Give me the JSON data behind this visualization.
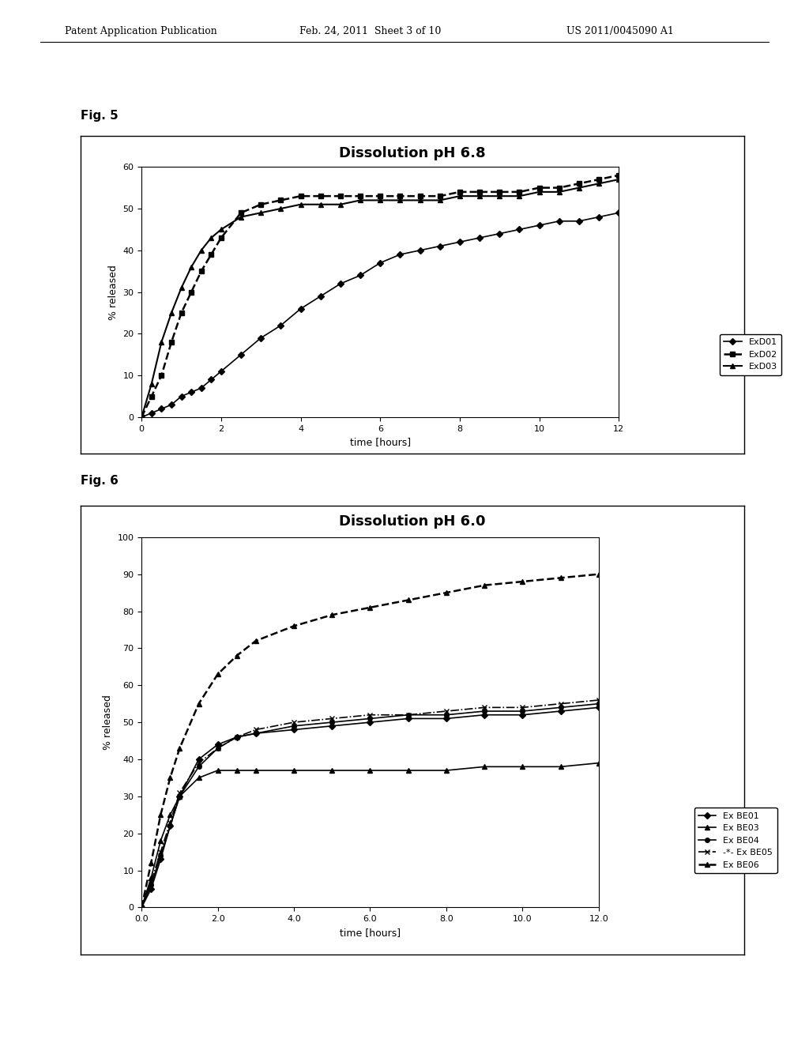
{
  "fig5": {
    "title": "Dissolution pH 6.8",
    "xlabel": "time [hours]",
    "ylabel": "% released",
    "xlim": [
      0,
      12
    ],
    "ylim": [
      0,
      60
    ],
    "yticks": [
      0,
      10,
      20,
      30,
      40,
      50,
      60
    ],
    "xticks": [
      0,
      2,
      4,
      6,
      8,
      10,
      12
    ],
    "series": {
      "ExD01": {
        "x": [
          0,
          0.25,
          0.5,
          0.75,
          1.0,
          1.25,
          1.5,
          1.75,
          2.0,
          2.5,
          3.0,
          3.5,
          4.0,
          4.5,
          5.0,
          5.5,
          6.0,
          6.5,
          7.0,
          7.5,
          8.0,
          8.5,
          9.0,
          9.5,
          10.0,
          10.5,
          11.0,
          11.5,
          12.0
        ],
        "y": [
          0,
          1,
          2,
          3,
          5,
          6,
          7,
          9,
          11,
          15,
          19,
          22,
          26,
          29,
          32,
          34,
          37,
          39,
          40,
          41,
          42,
          43,
          44,
          45,
          46,
          47,
          47,
          48,
          49
        ],
        "marker": "D",
        "linestyle": "-",
        "color": "#000000",
        "markersize": 4,
        "linewidth": 1.2,
        "label": "ExD01"
      },
      "ExD02": {
        "x": [
          0,
          0.25,
          0.5,
          0.75,
          1.0,
          1.25,
          1.5,
          1.75,
          2.0,
          2.5,
          3.0,
          3.5,
          4.0,
          4.5,
          5.0,
          5.5,
          6.0,
          6.5,
          7.0,
          7.5,
          8.0,
          8.5,
          9.0,
          9.5,
          10.0,
          10.5,
          11.0,
          11.5,
          12.0
        ],
        "y": [
          0,
          5,
          10,
          18,
          25,
          30,
          35,
          39,
          43,
          49,
          51,
          52,
          53,
          53,
          53,
          53,
          53,
          53,
          53,
          53,
          54,
          54,
          54,
          54,
          55,
          55,
          56,
          57,
          58
        ],
        "marker": "s",
        "linestyle": "--",
        "color": "#000000",
        "markersize": 5,
        "linewidth": 1.8,
        "label": "ExD02"
      },
      "ExD03": {
        "x": [
          0,
          0.25,
          0.5,
          0.75,
          1.0,
          1.25,
          1.5,
          1.75,
          2.0,
          2.5,
          3.0,
          3.5,
          4.0,
          4.5,
          5.0,
          5.5,
          6.0,
          6.5,
          7.0,
          7.5,
          8.0,
          8.5,
          9.0,
          9.5,
          10.0,
          10.5,
          11.0,
          11.5,
          12.0
        ],
        "y": [
          0,
          8,
          18,
          25,
          31,
          36,
          40,
          43,
          45,
          48,
          49,
          50,
          51,
          51,
          51,
          52,
          52,
          52,
          52,
          52,
          53,
          53,
          53,
          53,
          54,
          54,
          55,
          56,
          57
        ],
        "marker": "^",
        "linestyle": "-",
        "color": "#000000",
        "markersize": 5,
        "linewidth": 1.5,
        "label": "ExD03"
      }
    }
  },
  "fig6": {
    "title": "Dissolution pH 6.0",
    "xlabel": "time [hours]",
    "ylabel": "% released",
    "xlim": [
      0.0,
      12.0
    ],
    "ylim": [
      0,
      100
    ],
    "yticks": [
      0,
      10,
      20,
      30,
      40,
      50,
      60,
      70,
      80,
      90,
      100
    ],
    "xticks": [
      0.0,
      2.0,
      4.0,
      6.0,
      8.0,
      10.0,
      12.0
    ],
    "series": {
      "ExBE01": {
        "x": [
          0,
          0.25,
          0.5,
          0.75,
          1.0,
          1.5,
          2.0,
          2.5,
          3.0,
          4.0,
          5.0,
          6.0,
          7.0,
          8.0,
          9.0,
          10.0,
          11.0,
          12.0
        ],
        "y": [
          0,
          5,
          13,
          22,
          30,
          40,
          44,
          46,
          47,
          48,
          49,
          50,
          51,
          51,
          52,
          52,
          53,
          54
        ],
        "marker": "D",
        "linestyle": "-",
        "color": "#000000",
        "markersize": 4,
        "linewidth": 1.2,
        "label": "Ex BE01"
      },
      "ExBE03": {
        "x": [
          0,
          0.25,
          0.5,
          0.75,
          1.0,
          1.5,
          2.0,
          2.5,
          3.0,
          4.0,
          5.0,
          6.0,
          7.0,
          8.0,
          9.0,
          10.0,
          11.0,
          12.0
        ],
        "y": [
          0,
          8,
          18,
          25,
          30,
          35,
          37,
          37,
          37,
          37,
          37,
          37,
          37,
          37,
          38,
          38,
          38,
          39
        ],
        "marker": "^",
        "linestyle": "-",
        "color": "#000000",
        "markersize": 5,
        "linewidth": 1.2,
        "label": "Ex BE03"
      },
      "ExBE04": {
        "x": [
          0,
          0.25,
          0.5,
          0.75,
          1.0,
          1.5,
          2.0,
          2.5,
          3.0,
          4.0,
          5.0,
          6.0,
          7.0,
          8.0,
          9.0,
          10.0,
          11.0,
          12.0
        ],
        "y": [
          0,
          6,
          14,
          22,
          30,
          38,
          43,
          46,
          47,
          49,
          50,
          51,
          52,
          52,
          53,
          53,
          54,
          55
        ],
        "marker": "o",
        "linestyle": "-",
        "color": "#000000",
        "markersize": 4,
        "linewidth": 1.2,
        "label": "Ex BE04"
      },
      "ExBE05": {
        "x": [
          0,
          0.25,
          0.5,
          0.75,
          1.0,
          1.5,
          2.0,
          2.5,
          3.0,
          4.0,
          5.0,
          6.0,
          7.0,
          8.0,
          9.0,
          10.0,
          11.0,
          12.0
        ],
        "y": [
          0,
          7,
          15,
          23,
          31,
          39,
          43,
          46,
          48,
          50,
          51,
          52,
          52,
          53,
          54,
          54,
          55,
          56
        ],
        "marker": "x",
        "linestyle": "-.",
        "color": "#000000",
        "markersize": 5,
        "linewidth": 1.2,
        "label": "-*- Ex BE05"
      },
      "ExBE06": {
        "x": [
          0,
          0.25,
          0.5,
          0.75,
          1.0,
          1.5,
          2.0,
          2.5,
          3.0,
          4.0,
          5.0,
          6.0,
          7.0,
          8.0,
          9.0,
          10.0,
          11.0,
          12.0
        ],
        "y": [
          0,
          12,
          25,
          35,
          43,
          55,
          63,
          68,
          72,
          76,
          79,
          81,
          83,
          85,
          87,
          88,
          89,
          90
        ],
        "marker": "^",
        "linestyle": "--",
        "color": "#000000",
        "markersize": 5,
        "linewidth": 1.8,
        "label": "Ex BE06"
      }
    }
  },
  "header_text": "Patent Application Publication",
  "header_date": "Feb. 24, 2011  Sheet 3 of 10",
  "header_patent": "US 2011/0045090 A1",
  "bg_color": "#ffffff",
  "text_color": "#000000",
  "fig5_label": "Fig. 5",
  "fig6_label": "Fig. 6"
}
